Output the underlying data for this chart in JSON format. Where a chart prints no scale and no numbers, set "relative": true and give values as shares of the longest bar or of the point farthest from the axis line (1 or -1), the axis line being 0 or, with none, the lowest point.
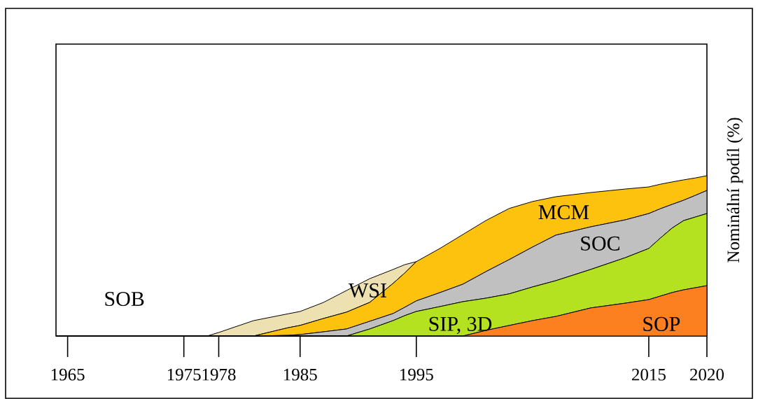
{
  "chart_data": {
    "type": "area",
    "stacked": true,
    "relative": true,
    "ylabel": "Nominální podíl (%)",
    "annotations": [
      "SOB"
    ],
    "x": [
      1964,
      1977,
      1978,
      1981,
      1984,
      1985,
      1987,
      1989,
      1991,
      1993,
      1994,
      1995,
      1997,
      1999,
      2001,
      2003,
      2005,
      2007,
      2010,
      2013,
      2015,
      2016,
      2017,
      2018,
      2019,
      2020
    ],
    "xlim": [
      1964,
      2020
    ],
    "xticks": [
      1965,
      1975,
      1978,
      1985,
      1995,
      2015,
      2020
    ],
    "series": [
      {
        "name": "SOP",
        "color": "#fc7f20",
        "values": [
          0,
          0,
          0,
          0,
          0,
          0,
          0,
          0,
          0,
          0,
          0,
          0,
          0,
          0,
          0.035,
          0.066,
          0.096,
          0.122,
          0.175,
          0.205,
          0.227,
          0.249,
          0.271,
          0.288,
          0.301,
          0.314
        ]
      },
      {
        "name": "SIP, 3D",
        "color": "#b4e220",
        "values": [
          0,
          0,
          0,
          0,
          0,
          0,
          0,
          0,
          0.044,
          0.096,
          0.127,
          0.153,
          0.183,
          0.214,
          0.201,
          0.197,
          0.21,
          0.223,
          0.24,
          0.284,
          0.319,
          0.362,
          0.402,
          0.432,
          0.441,
          0.45
        ]
      },
      {
        "name": "SOC",
        "color": "#c0c0c0",
        "values": [
          0,
          0,
          0,
          0,
          0.004,
          0.009,
          0.026,
          0.044,
          0.048,
          0.044,
          0.052,
          0.066,
          0.087,
          0.109,
          0.166,
          0.214,
          0.249,
          0.284,
          0.266,
          0.236,
          0.218,
          0.183,
          0.148,
          0.127,
          0.135,
          0.144
        ]
      },
      {
        "name": "MCM",
        "color": "#fdc20e",
        "values": [
          0,
          0,
          0,
          0,
          0.048,
          0.057,
          0.083,
          0.105,
          0.118,
          0.188,
          0.214,
          0.245,
          0.275,
          0.31,
          0.319,
          0.319,
          0.284,
          0.24,
          0.214,
          0.192,
          0.166,
          0.153,
          0.14,
          0.127,
          0.109,
          0.092
        ]
      },
      {
        "name": "WSI",
        "color": "#ede1b1",
        "values": [
          0,
          0,
          0.022,
          0.096,
          0.087,
          0.087,
          0.1,
          0.135,
          0.148,
          0.087,
          0.052,
          0,
          null,
          null,
          null,
          null,
          null,
          null,
          null,
          null,
          null,
          null,
          null,
          null,
          null,
          null
        ]
      }
    ]
  }
}
